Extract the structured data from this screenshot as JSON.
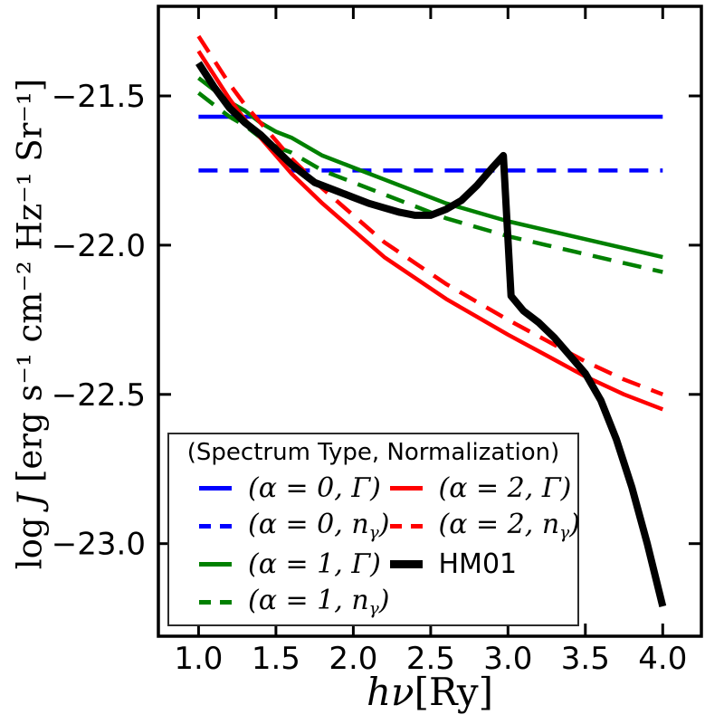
{
  "figure": {
    "xlabel": {
      "var": "hν",
      "unit": "[Ry]"
    },
    "ylabel": {
      "prefix": "log ",
      "var": "J",
      "rest": " [erg s⁻¹ cm⁻² Hz⁻¹ Sr⁻¹]"
    }
  },
  "colors": {
    "blue": "#0000ff",
    "green": "#008000",
    "red": "#ff0000",
    "black": "#000000",
    "axis": "#000000",
    "background": "#ffffff"
  },
  "legend": {
    "title": "(Spectrum Type, Normalization)",
    "entries": [
      {
        "column": 1,
        "color": "#0000ff",
        "style": "solid",
        "thick": false,
        "math": true,
        "pre": "(α = 0, Γ)",
        "sub": "",
        "post": ""
      },
      {
        "column": 1,
        "color": "#0000ff",
        "style": "dashed",
        "thick": false,
        "math": true,
        "pre": "(α = 0, n",
        "sub": "γ",
        "post": ")"
      },
      {
        "column": 1,
        "color": "#008000",
        "style": "solid",
        "thick": false,
        "math": true,
        "pre": "(α = 1, Γ)",
        "sub": "",
        "post": ""
      },
      {
        "column": 1,
        "color": "#008000",
        "style": "dashed",
        "thick": false,
        "math": true,
        "pre": "(α = 1, n",
        "sub": "γ",
        "post": ")"
      },
      {
        "column": 2,
        "color": "#ff0000",
        "style": "solid",
        "thick": false,
        "math": true,
        "pre": "(α = 2, Γ)",
        "sub": "",
        "post": ""
      },
      {
        "column": 2,
        "color": "#ff0000",
        "style": "dashed",
        "thick": false,
        "math": true,
        "pre": "(α = 2, n",
        "sub": "γ",
        "post": ")"
      },
      {
        "column": 2,
        "color": "#000000",
        "style": "solid",
        "thick": true,
        "math": false,
        "pre": "HM01",
        "sub": "",
        "post": ""
      }
    ]
  },
  "chart_data": {
    "type": "line",
    "title": "",
    "xlabel": "hν[Ry]",
    "ylabel": "log J [erg s⁻¹ cm⁻² Hz⁻¹ Sr⁻¹]",
    "xlim": [
      0.74,
      4.25
    ],
    "ylim": [
      -23.31,
      -21.2
    ],
    "x_ticks": [
      1.0,
      1.5,
      2.0,
      2.5,
      3.0,
      3.5,
      4.0
    ],
    "x_ticklabels": [
      "1.0",
      "1.5",
      "2.0",
      "2.5",
      "3.0",
      "3.5",
      "4.0"
    ],
    "y_ticks": [
      -21.5,
      -22.0,
      -22.5,
      -23.0
    ],
    "y_ticklabels": [
      "−21.5",
      "−22.0",
      "−22.5",
      "−23.0"
    ],
    "grid": false,
    "legend_position": "lower left",
    "series": [
      {
        "name": "(α=0, Γ)",
        "slug": "alpha0-Gamma",
        "color": "#0000ff",
        "style": "solid",
        "width": 4.5,
        "x": [
          1.0,
          4.0
        ],
        "y": [
          -21.57,
          -21.57
        ]
      },
      {
        "name": "(α=0, n_γ)",
        "slug": "alpha0-ngamma",
        "color": "#0000ff",
        "style": "dashed",
        "width": 4.5,
        "x": [
          1.0,
          4.0
        ],
        "y": [
          -21.75,
          -21.75
        ]
      },
      {
        "name": "(α=1, Γ)",
        "slug": "alpha1-Gamma",
        "color": "#008000",
        "style": "solid",
        "width": 4.5,
        "x": [
          1.0,
          1.1,
          1.2,
          1.3,
          1.4,
          1.5,
          1.6,
          1.8,
          2.0,
          2.2,
          2.4,
          2.6,
          2.8,
          3.0,
          3.25,
          3.5,
          3.75,
          4.0
        ],
        "y": [
          -21.44,
          -21.48,
          -21.52,
          -21.55,
          -21.59,
          -21.62,
          -21.64,
          -21.7,
          -21.74,
          -21.78,
          -21.82,
          -21.86,
          -21.89,
          -21.92,
          -21.95,
          -21.98,
          -22.01,
          -22.04
        ]
      },
      {
        "name": "(α=1, n_γ)",
        "slug": "alpha1-ngamma",
        "color": "#008000",
        "style": "dashed",
        "width": 4.5,
        "x": [
          1.0,
          1.1,
          1.2,
          1.3,
          1.4,
          1.5,
          1.6,
          1.8,
          2.0,
          2.2,
          2.4,
          2.6,
          2.8,
          3.0,
          3.25,
          3.5,
          3.75,
          4.0
        ],
        "y": [
          -21.49,
          -21.53,
          -21.57,
          -21.6,
          -21.64,
          -21.67,
          -21.69,
          -21.75,
          -21.79,
          -21.83,
          -21.87,
          -21.91,
          -21.94,
          -21.97,
          -22.0,
          -22.03,
          -22.06,
          -22.09
        ]
      },
      {
        "name": "(α=2, n_γ)",
        "slug": "alpha2-ngamma",
        "color": "#ff0000",
        "style": "dashed",
        "width": 4.5,
        "x": [
          1.0,
          1.1,
          1.2,
          1.3,
          1.4,
          1.5,
          1.6,
          1.8,
          2.0,
          2.2,
          2.4,
          2.6,
          2.8,
          3.0,
          3.25,
          3.5,
          3.75,
          4.0
        ],
        "y": [
          -21.3,
          -21.38,
          -21.46,
          -21.53,
          -21.59,
          -21.65,
          -21.71,
          -21.81,
          -21.9,
          -21.99,
          -22.06,
          -22.13,
          -22.19,
          -22.25,
          -22.32,
          -22.39,
          -22.45,
          -22.5
        ]
      },
      {
        "name": "(α=2, Γ)",
        "slug": "alpha2-Gamma",
        "color": "#ff0000",
        "style": "solid",
        "width": 4.5,
        "x": [
          1.0,
          1.1,
          1.2,
          1.3,
          1.4,
          1.5,
          1.6,
          1.8,
          2.0,
          2.2,
          2.4,
          2.6,
          2.8,
          3.0,
          3.25,
          3.5,
          3.75,
          4.0
        ],
        "y": [
          -21.35,
          -21.43,
          -21.51,
          -21.58,
          -21.64,
          -21.7,
          -21.76,
          -21.86,
          -21.95,
          -22.04,
          -22.11,
          -22.18,
          -22.24,
          -22.3,
          -22.37,
          -22.44,
          -22.5,
          -22.55
        ]
      },
      {
        "name": "HM01",
        "slug": "hm01",
        "color": "#000000",
        "style": "solid",
        "width": 8,
        "x": [
          1.0,
          1.1,
          1.2,
          1.3,
          1.4,
          1.5,
          1.6,
          1.75,
          1.9,
          2.0,
          2.1,
          2.2,
          2.3,
          2.4,
          2.5,
          2.6,
          2.7,
          2.8,
          2.9,
          2.97,
          3.02,
          3.1,
          3.2,
          3.3,
          3.4,
          3.5,
          3.6,
          3.7,
          3.8,
          3.9,
          4.0
        ],
        "y": [
          -21.39,
          -21.47,
          -21.54,
          -21.59,
          -21.63,
          -21.68,
          -21.73,
          -21.79,
          -21.82,
          -21.84,
          -21.86,
          -21.875,
          -21.89,
          -21.9,
          -21.9,
          -21.88,
          -21.85,
          -21.8,
          -21.74,
          -21.7,
          -22.17,
          -22.22,
          -22.26,
          -22.31,
          -22.37,
          -22.43,
          -22.52,
          -22.65,
          -22.81,
          -23.0,
          -23.21
        ]
      }
    ]
  }
}
